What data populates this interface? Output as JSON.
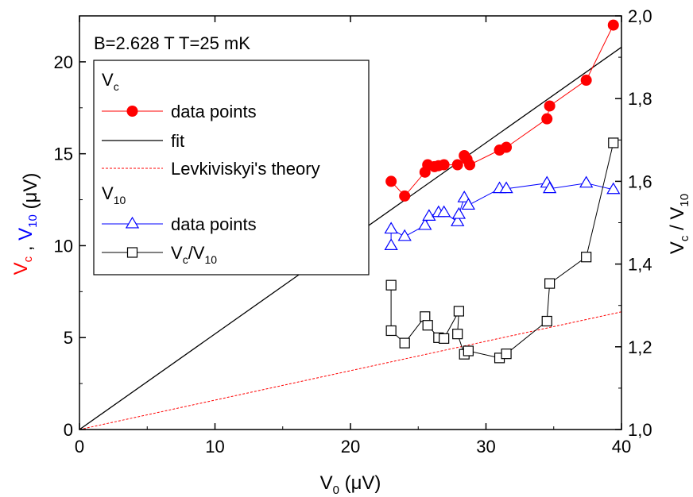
{
  "chart_data": {
    "type": "scatter",
    "annotation": "B=2.628 T   T=25 mK",
    "xlabel": {
      "main": "V",
      "sub": "0",
      "unit": " (μV)"
    },
    "ylabel_left": [
      {
        "main": "V",
        "sub": "c",
        "color": "#ff0000"
      },
      {
        "sep": " , "
      },
      {
        "main": "V",
        "sub": "10",
        "color": "#0000ff"
      },
      {
        "unit": "  (μV)"
      }
    ],
    "ylabel_right": {
      "main1": "V",
      "sub1": "c",
      "sep": " / ",
      "main2": "V",
      "sub2": "10"
    },
    "xlim": [
      0,
      40
    ],
    "ylim_left": [
      0,
      22.5
    ],
    "ylim_right": [
      1.0,
      2.0
    ],
    "x_ticks": [
      0,
      10,
      20,
      30,
      40
    ],
    "x_tick_labels": [
      "0",
      "10",
      "20",
      "30",
      "40"
    ],
    "y_left_ticks": [
      0,
      5,
      10,
      15,
      20
    ],
    "y_left_tick_labels": [
      "0",
      "5",
      "10",
      "15",
      "20"
    ],
    "y_right_ticks": [
      1.0,
      1.2,
      1.4,
      1.6,
      1.8,
      2.0
    ],
    "y_right_tick_labels": [
      "1,0",
      "1,2",
      "1,4",
      "1,6",
      "1,8",
      "2,0"
    ],
    "legend": {
      "group1_title": {
        "main": "V",
        "sub": "c"
      },
      "group2_title": {
        "main": "V",
        "sub": "10"
      },
      "entries": [
        {
          "label": "data points",
          "style": "red-circle"
        },
        {
          "label": "fit",
          "style": "black-line"
        },
        {
          "label": "Levkiviskyi's theory",
          "style": "red-dashed"
        },
        {
          "label": "data points",
          "style": "blue-triangle"
        },
        {
          "label_main": "V",
          "label_sub1": "c",
          "label_sep": "/V",
          "label_sub2": "10",
          "style": "black-square"
        }
      ]
    },
    "series": [
      {
        "name": "Vc data points",
        "axis": "left",
        "color": "#ff0000",
        "marker": "circle",
        "x": [
          23.0,
          24.0,
          25.5,
          25.7,
          26.2,
          26.5,
          26.9,
          27.9,
          28.4,
          28.6,
          28.8,
          31.0,
          31.5,
          34.5,
          34.7,
          37.4,
          39.4
        ],
        "y": [
          13.5,
          12.7,
          14.0,
          14.4,
          14.3,
          14.35,
          14.4,
          14.4,
          14.9,
          14.7,
          14.4,
          15.2,
          15.35,
          16.9,
          17.6,
          19.0,
          22.0
        ]
      },
      {
        "name": "fit",
        "axis": "left",
        "color": "#000000",
        "style": "line",
        "x": [
          0,
          40
        ],
        "y": [
          0,
          20.8
        ]
      },
      {
        "name": "Levkiviskyi's theory",
        "axis": "left",
        "color": "#ff0000",
        "style": "dashed",
        "x": [
          0,
          40
        ],
        "y": [
          0,
          6.4
        ]
      },
      {
        "name": "V10 data points",
        "axis": "left",
        "color": "#0000ff",
        "marker": "triangle",
        "x": [
          23.0,
          23.0,
          24.0,
          25.5,
          25.8,
          26.5,
          26.9,
          27.9,
          28.0,
          28.4,
          28.7,
          31.0,
          31.5,
          34.5,
          34.7,
          37.4,
          39.4
        ],
        "y": [
          10.0,
          10.9,
          10.5,
          11.1,
          11.6,
          11.8,
          11.8,
          11.3,
          11.7,
          12.6,
          12.2,
          13.1,
          13.1,
          13.4,
          13.1,
          13.4,
          13.05
        ]
      },
      {
        "name": "Vc/V10",
        "axis": "right",
        "color": "#000000",
        "marker": "square",
        "x": [
          23.0,
          23.0,
          24.0,
          25.5,
          25.7,
          26.5,
          26.9,
          28.0,
          27.9,
          28.4,
          28.7,
          31.0,
          31.5,
          34.5,
          34.7,
          37.4,
          39.4
        ],
        "y": [
          1.349,
          1.239,
          1.209,
          1.273,
          1.252,
          1.222,
          1.22,
          1.286,
          1.231,
          1.182,
          1.19,
          1.173,
          1.183,
          1.262,
          1.353,
          1.417,
          1.693
        ]
      }
    ]
  }
}
